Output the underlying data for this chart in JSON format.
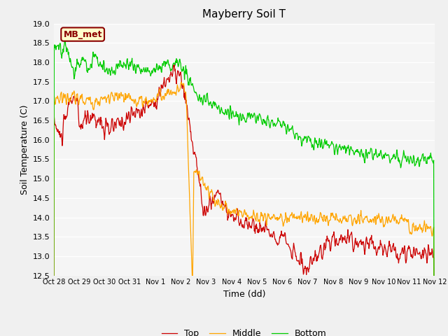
{
  "title": "Mayberry Soil T",
  "xlabel": "Time (dd)",
  "ylabel": "Soil Temperature (C)",
  "ylim": [
    12.5,
    19.0
  ],
  "yticks": [
    12.5,
    13.0,
    13.5,
    14.0,
    14.5,
    15.0,
    15.5,
    16.0,
    16.5,
    17.0,
    17.5,
    18.0,
    18.5,
    19.0
  ],
  "legend_label": "MB_met",
  "legend_box_facecolor": "#ffffcc",
  "legend_box_edgecolor": "#8b0000",
  "line_top_color": "#cc0000",
  "line_middle_color": "#ffa500",
  "line_bottom_color": "#00cc00",
  "fig_facecolor": "#f0f0f0",
  "ax_facecolor": "#f5f5f5",
  "grid_color": "#ffffff",
  "xtick_labels": [
    "Oct 28",
    "Oct 29",
    "Oct 30",
    "Oct 31",
    "Nov 1",
    "Nov 2",
    "Nov 3",
    "Nov 4",
    "Nov 5",
    "Nov 6",
    "Nov 7",
    "Nov 8",
    "Nov 9",
    "Nov 10",
    "Nov 11",
    "Nov 12"
  ],
  "n_per_day": 60,
  "n_days": 15
}
